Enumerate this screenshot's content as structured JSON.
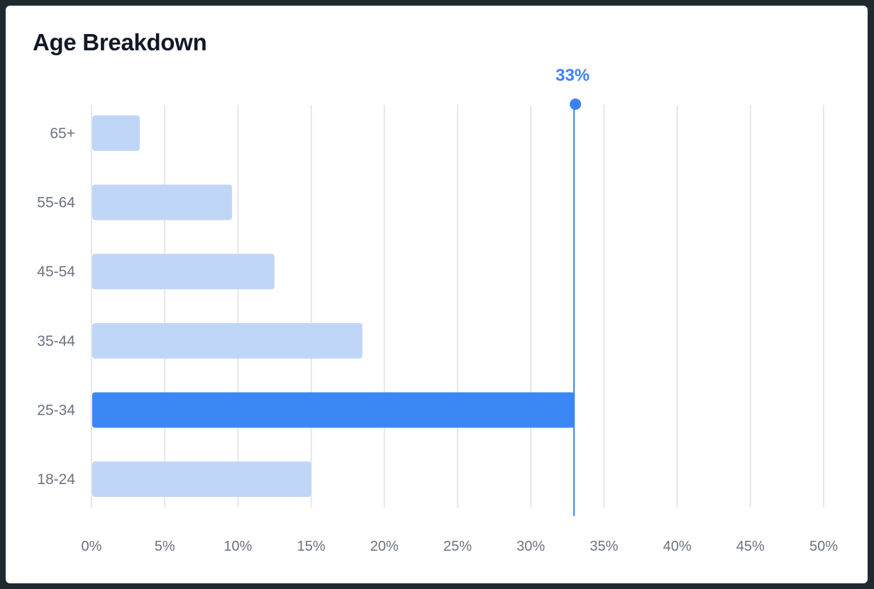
{
  "card": {
    "title": "Age Breakdown"
  },
  "chart_data": {
    "type": "bar",
    "orientation": "horizontal",
    "title": "Age Breakdown",
    "categories": [
      "65+",
      "55-64",
      "45-54",
      "35-44",
      "25-34",
      "18-24"
    ],
    "values": [
      3.3,
      9.6,
      12.5,
      18.5,
      33,
      15
    ],
    "highlight_category": "25-34",
    "marker": {
      "value": 33,
      "label": "33%"
    },
    "xlim": [
      0,
      50
    ],
    "x_ticks": [
      "0%",
      "5%",
      "10%",
      "15%",
      "20%",
      "25%",
      "30%",
      "35%",
      "40%",
      "45%",
      "50%"
    ],
    "xlabel": "",
    "ylabel": "",
    "grid": "vertical",
    "colors": {
      "bar": "#bfd6f6",
      "bar_highlight": "#3b88f5",
      "marker": "#3b82f6",
      "grid": "#e5e7eb"
    }
  }
}
